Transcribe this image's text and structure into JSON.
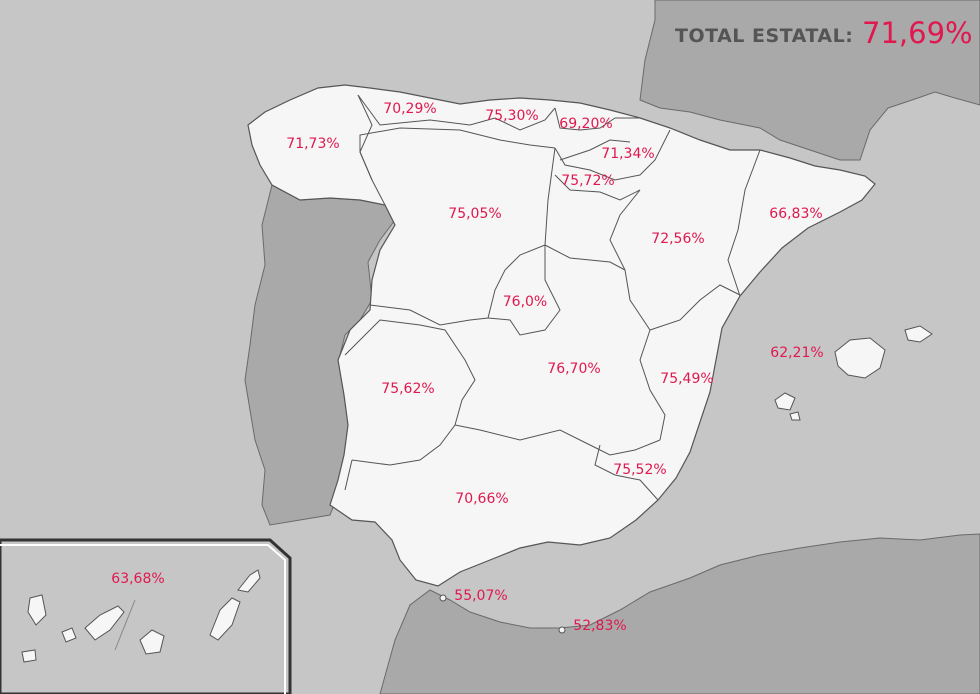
{
  "header": {
    "label": "TOTAL ESTATAL:",
    "value": "71,69%"
  },
  "regions": {
    "galicia": "71,73%",
    "asturias": "70,29%",
    "cantabria": "75,30%",
    "pais_vasco": "69,20%",
    "navarra": "71,34%",
    "la_rioja": "75,72%",
    "castilla_leon": "75,05%",
    "aragon": "72,56%",
    "cataluna": "66,83%",
    "madrid": "76,0%",
    "castilla_la_mancha": "76,70%",
    "extremadura": "75,62%",
    "valencia": "75,49%",
    "baleares": "62,21%",
    "murcia": "75,52%",
    "andalucia": "70,66%",
    "canarias": "63,68%",
    "ceuta": "55,07%",
    "melilla": "52,83%"
  },
  "colors": {
    "sea": "#c6c6c6",
    "land_other": "#a9a9a9",
    "spain": "#f6f6f6",
    "border": "#555555",
    "accent": "#e0184f"
  }
}
